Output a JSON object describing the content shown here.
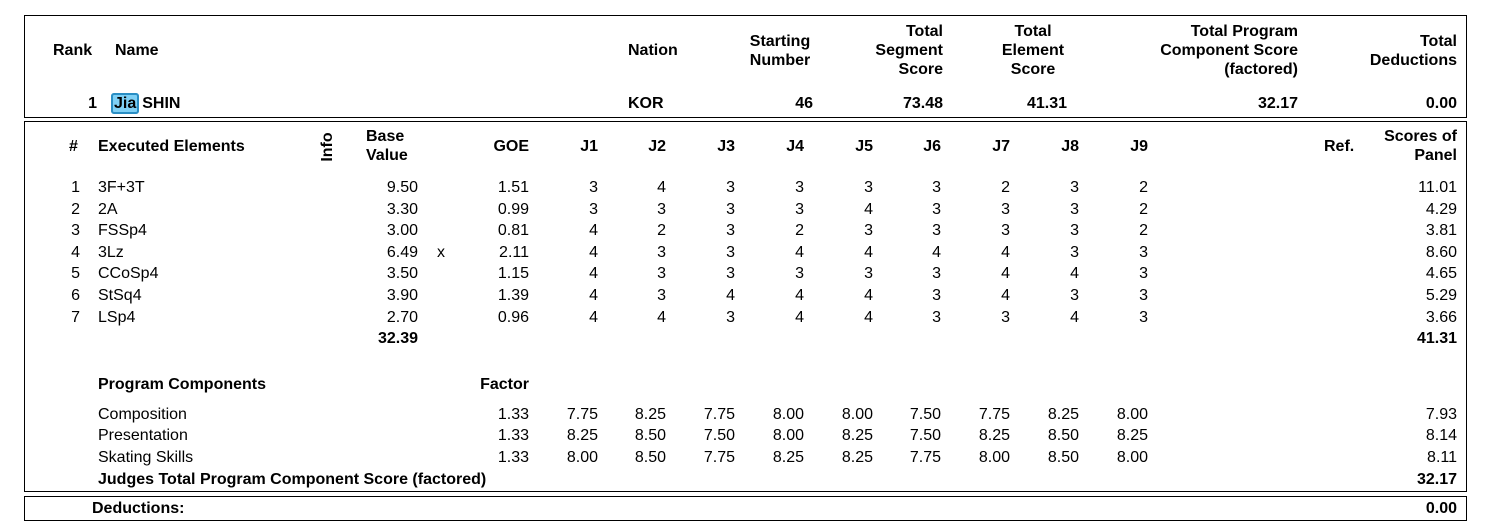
{
  "header": {
    "labels": {
      "rank": "Rank",
      "name": "Name",
      "nation": "Nation",
      "starting_number": [
        "Starting",
        "Number"
      ],
      "tss": [
        "Total",
        "Segment",
        "Score"
      ],
      "tes": [
        "Total",
        "Element",
        "Score"
      ],
      "pcs": [
        "Total Program",
        "Component Score",
        "(factored)"
      ],
      "ded": [
        "Total",
        "Deductions"
      ]
    },
    "skater": {
      "rank": "1",
      "first_name": "Jia",
      "last_name": "SHIN",
      "nation": "KOR",
      "starting_number": "46",
      "total_segment_score": "73.48",
      "total_element_score": "41.31",
      "total_pcs": "32.17",
      "total_deductions": "0.00"
    }
  },
  "elements_header": {
    "num": "#",
    "executed": "Executed Elements",
    "info": "Info",
    "base": [
      "Base",
      "Value"
    ],
    "goe": "GOE",
    "judges": [
      "J1",
      "J2",
      "J3",
      "J4",
      "J5",
      "J6",
      "J7",
      "J8",
      "J9"
    ],
    "ref": "Ref.",
    "panel": [
      "Scores of",
      "Panel"
    ]
  },
  "elements": [
    {
      "num": "1",
      "name": "3F+3T",
      "info": "",
      "base": "9.50",
      "goe": "1.51",
      "j": [
        "3",
        "4",
        "3",
        "3",
        "3",
        "3",
        "2",
        "3",
        "2"
      ],
      "panel": "11.01"
    },
    {
      "num": "2",
      "name": "2A",
      "info": "",
      "base": "3.30",
      "goe": "0.99",
      "j": [
        "3",
        "3",
        "3",
        "3",
        "4",
        "3",
        "3",
        "3",
        "2"
      ],
      "panel": "4.29"
    },
    {
      "num": "3",
      "name": "FSSp4",
      "info": "",
      "base": "3.00",
      "goe": "0.81",
      "j": [
        "4",
        "2",
        "3",
        "2",
        "3",
        "3",
        "3",
        "3",
        "2"
      ],
      "panel": "3.81"
    },
    {
      "num": "4",
      "name": "3Lz",
      "info": "x",
      "base": "6.49",
      "goe": "2.11",
      "j": [
        "4",
        "3",
        "3",
        "4",
        "4",
        "4",
        "4",
        "3",
        "3"
      ],
      "panel": "8.60"
    },
    {
      "num": "5",
      "name": "CCoSp4",
      "info": "",
      "base": "3.50",
      "goe": "1.15",
      "j": [
        "4",
        "3",
        "3",
        "3",
        "3",
        "3",
        "4",
        "4",
        "3"
      ],
      "panel": "4.65"
    },
    {
      "num": "6",
      "name": "StSq4",
      "info": "",
      "base": "3.90",
      "goe": "1.39",
      "j": [
        "4",
        "3",
        "4",
        "4",
        "4",
        "3",
        "4",
        "3",
        "3"
      ],
      "panel": "5.29"
    },
    {
      "num": "7",
      "name": "LSp4",
      "info": "",
      "base": "2.70",
      "goe": "0.96",
      "j": [
        "4",
        "4",
        "3",
        "4",
        "4",
        "3",
        "3",
        "4",
        "3"
      ],
      "panel": "3.66"
    }
  ],
  "elements_totals": {
    "base": "32.39",
    "panel": "41.31"
  },
  "components_header": {
    "title": "Program Components",
    "factor": "Factor"
  },
  "components": [
    {
      "name": "Composition",
      "factor": "1.33",
      "j": [
        "7.75",
        "8.25",
        "7.75",
        "8.00",
        "8.00",
        "7.50",
        "7.75",
        "8.25",
        "8.00"
      ],
      "panel": "7.93"
    },
    {
      "name": "Presentation",
      "factor": "1.33",
      "j": [
        "8.25",
        "8.50",
        "7.50",
        "8.00",
        "8.25",
        "7.50",
        "8.25",
        "8.50",
        "8.25"
      ],
      "panel": "8.14"
    },
    {
      "name": "Skating Skills",
      "factor": "1.33",
      "j": [
        "8.00",
        "8.50",
        "7.75",
        "8.25",
        "8.25",
        "7.75",
        "8.00",
        "8.50",
        "8.00"
      ],
      "panel": "8.11"
    }
  ],
  "components_total": {
    "label": "Judges Total Program Component Score (factored)",
    "value": "32.17"
  },
  "deductions": {
    "label": "Deductions:",
    "value": "0.00"
  }
}
